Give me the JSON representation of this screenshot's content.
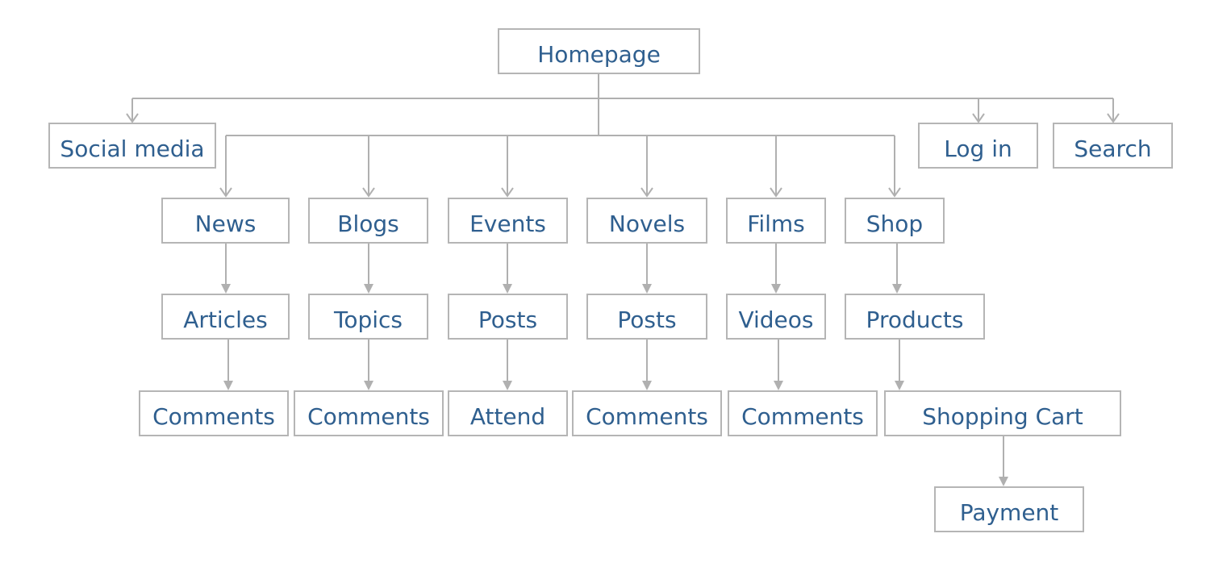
{
  "title": "",
  "colors": {
    "stroke": "#b0b0b0",
    "border": "#b5b5b5",
    "text": "#2f5f8f"
  },
  "nodes": {
    "homepage": "Homepage",
    "social_media": "Social media",
    "log_in": "Log in",
    "search": "Search",
    "news": "News",
    "blogs": "Blogs",
    "events": "Events",
    "novels": "Novels",
    "films": "Films",
    "shop": "Shop",
    "articles": "Articles",
    "topics": "Topics",
    "events_posts": "Posts",
    "novels_posts": "Posts",
    "videos": "Videos",
    "products": "Products",
    "news_comments": "Comments",
    "blogs_comments": "Comments",
    "attend": "Attend",
    "novels_comments": "Comments",
    "films_comments": "Comments",
    "shopping_cart": "Shopping Cart",
    "payment": "Payment"
  },
  "edges": [
    [
      "homepage",
      "social_media"
    ],
    [
      "homepage",
      "log_in"
    ],
    [
      "homepage",
      "search"
    ],
    [
      "homepage",
      "news"
    ],
    [
      "homepage",
      "blogs"
    ],
    [
      "homepage",
      "events"
    ],
    [
      "homepage",
      "novels"
    ],
    [
      "homepage",
      "films"
    ],
    [
      "homepage",
      "shop"
    ],
    [
      "news",
      "articles"
    ],
    [
      "blogs",
      "topics"
    ],
    [
      "events",
      "events_posts"
    ],
    [
      "novels",
      "novels_posts"
    ],
    [
      "films",
      "videos"
    ],
    [
      "shop",
      "products"
    ],
    [
      "articles",
      "news_comments"
    ],
    [
      "topics",
      "blogs_comments"
    ],
    [
      "events_posts",
      "attend"
    ],
    [
      "novels_posts",
      "novels_comments"
    ],
    [
      "videos",
      "films_comments"
    ],
    [
      "products",
      "shopping_cart"
    ],
    [
      "shopping_cart",
      "payment"
    ]
  ]
}
